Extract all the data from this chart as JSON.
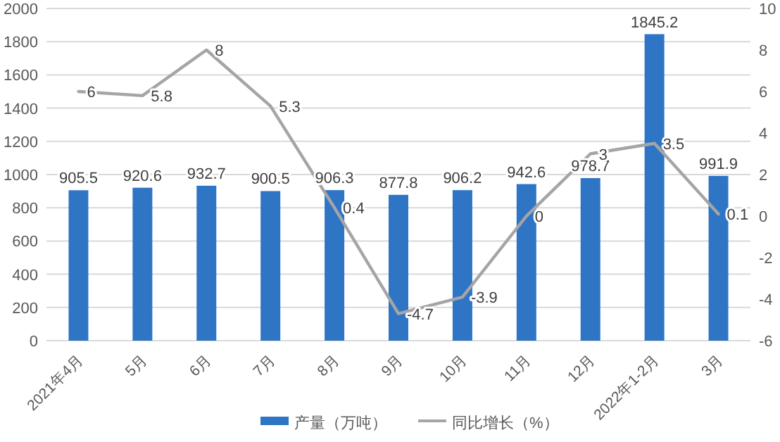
{
  "chart_data": {
    "type": "bar",
    "categories": [
      "2021年4月",
      "5月",
      "6月",
      "7月",
      "8月",
      "9月",
      "10月",
      "11月",
      "12月",
      "2022年1-2月",
      "3月"
    ],
    "series": [
      {
        "name": "产量（万吨）",
        "color": "#2e75c6",
        "values": [
          905.5,
          920.6,
          932.7,
          900.5,
          906.3,
          877.8,
          906.2,
          942.6,
          978.7,
          1845.2,
          991.9
        ]
      },
      {
        "name": "同比增长（%）",
        "type": "line",
        "axis": "y2",
        "color": "#a5a5a5",
        "values": [
          6,
          5.8,
          8,
          5.3,
          0.4,
          -4.7,
          -3.9,
          0,
          3,
          3.5,
          0.1
        ]
      }
    ],
    "ylim": [
      0,
      2000
    ],
    "yticks": [
      0,
      200,
      400,
      600,
      800,
      1000,
      1200,
      1400,
      1600,
      1800,
      2000
    ],
    "y2lim": [
      -6,
      10
    ],
    "y2ticks": [
      -6,
      -4,
      -2,
      0,
      2,
      4,
      6,
      8,
      10
    ],
    "grid": "y",
    "legend": "bottom",
    "data_labels": true
  }
}
